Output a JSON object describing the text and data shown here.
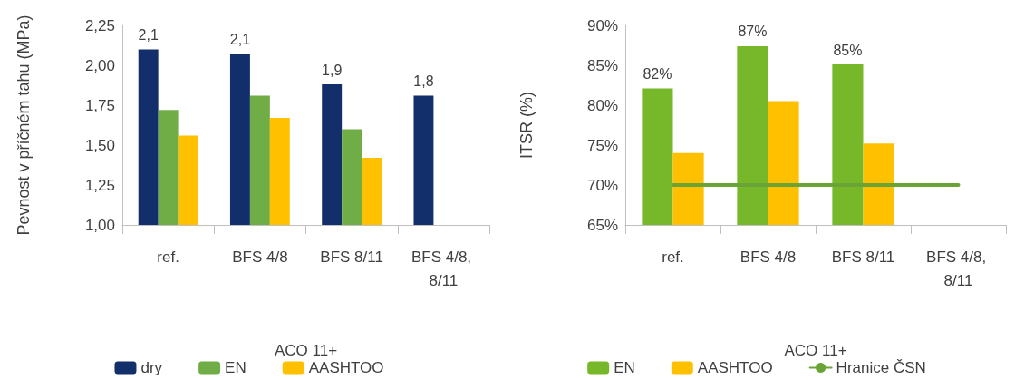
{
  "chart_data": [
    {
      "type": "bar",
      "ylabel": "Pevnost v příčném tahu (MPa)",
      "xlabel": "ACO 11+",
      "categories": [
        "ref.",
        "BFS 4/8",
        "BFS 8/11",
        "BFS 4/8, 8/11"
      ],
      "series": [
        {
          "name": "dry",
          "color": "#132f6b",
          "values": [
            2.1,
            2.07,
            1.88,
            1.81
          ],
          "value_labels": [
            "2,1",
            "2,1",
            "1,9",
            "1,8"
          ]
        },
        {
          "name": "EN",
          "color": "#70ad47",
          "values": [
            1.72,
            1.81,
            1.6,
            null
          ]
        },
        {
          "name": "AASHTOO",
          "color": "#ffc000",
          "values": [
            1.56,
            1.67,
            1.42,
            null
          ]
        }
      ],
      "ylim": [
        1,
        2.25
      ],
      "yticks": [
        {
          "value": 1,
          "label": "1,00"
        },
        {
          "value": 1.25,
          "label": "1,25"
        },
        {
          "value": 1.5,
          "label": "1,50"
        },
        {
          "value": 1.75,
          "label": "1,75"
        },
        {
          "value": 2,
          "label": "2,00"
        },
        {
          "value": 2.25,
          "label": "2,25"
        }
      ],
      "grid": false,
      "legend": "bottom"
    },
    {
      "type": "bar",
      "ylabel": "ITSR (%)",
      "xlabel": "ACO 11+",
      "categories": [
        "ref.",
        "BFS 4/8",
        "BFS 8/11",
        "BFS 4/8, 8/11"
      ],
      "series": [
        {
          "name": "EN",
          "color": "#76b82a",
          "values": [
            82.1,
            87.4,
            85.1,
            null
          ],
          "value_labels": [
            "82%",
            "87%",
            "85%",
            null
          ]
        },
        {
          "name": "AASHTOO",
          "color": "#ffc000",
          "values": [
            74.0,
            80.5,
            75.2,
            null
          ]
        },
        {
          "name": "Hranice ČSN",
          "type": "line",
          "color": "#6aa336",
          "values": [
            70,
            70,
            70,
            70
          ]
        }
      ],
      "ylim": [
        65,
        90
      ],
      "yticks": [
        {
          "value": 65,
          "label": "65%"
        },
        {
          "value": 70,
          "label": "70%"
        },
        {
          "value": 75,
          "label": "75%"
        },
        {
          "value": 80,
          "label": "80%"
        },
        {
          "value": 85,
          "label": "85%"
        },
        {
          "value": 90,
          "label": "90%"
        }
      ],
      "grid": false,
      "legend": "bottom",
      "marker": "none"
    }
  ]
}
